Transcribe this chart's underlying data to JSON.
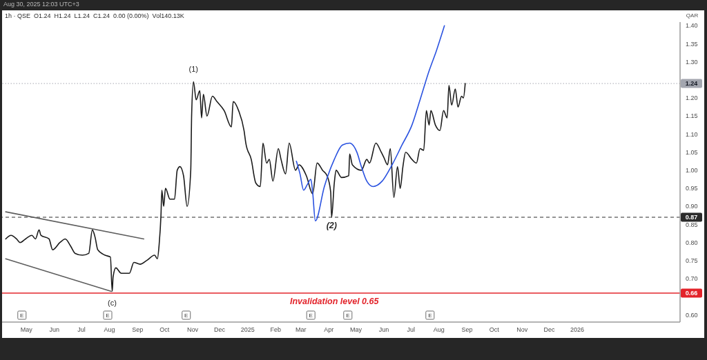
{
  "chart_data": {
    "type": "line",
    "title": "1h · QSE  O1.24  H1.24  L1.24  C1.24  0.00 (0.00%)  Vol140.13K",
    "subtitle": "Aug 30, 2025 12:03 UTC+3",
    "ylabel": "QAR",
    "xlim": [
      "2024-04-04",
      "2026-04-25"
    ],
    "xticks": [
      {
        "value": "2024-05-01",
        "label": "May"
      },
      {
        "value": "2024-06-01",
        "label": "Jun"
      },
      {
        "value": "2024-07-01",
        "label": "Jul"
      },
      {
        "value": "2024-08-01",
        "label": "Aug"
      },
      {
        "value": "2024-09-01",
        "label": "Sep"
      },
      {
        "value": "2024-10-01",
        "label": "Oct"
      },
      {
        "value": "2024-11-01",
        "label": "Nov"
      },
      {
        "value": "2024-12-01",
        "label": "Dec"
      },
      {
        "value": "2025-01-01",
        "label": "2025"
      },
      {
        "value": "2025-02-01",
        "label": "Feb"
      },
      {
        "value": "2025-03-01",
        "label": "Mar"
      },
      {
        "value": "2025-04-01",
        "label": "Apr"
      },
      {
        "value": "2025-05-01",
        "label": "May"
      },
      {
        "value": "2025-06-01",
        "label": "Jun"
      },
      {
        "value": "2025-07-01",
        "label": "Jul"
      },
      {
        "value": "2025-08-01",
        "label": "Aug"
      },
      {
        "value": "2025-09-01",
        "label": "Sep"
      },
      {
        "value": "2025-10-01",
        "label": "Oct"
      },
      {
        "value": "2025-11-01",
        "label": "Nov"
      },
      {
        "value": "2025-12-01",
        "label": "Dec"
      },
      {
        "value": "2026-01-01",
        "label": "2026"
      }
    ],
    "ylim": [
      0.58,
      1.41
    ],
    "yticks": [
      {
        "value": 0.6,
        "label": "0.60"
      },
      {
        "value": 0.7,
        "label": "0.70"
      },
      {
        "value": 0.75,
        "label": "0.75"
      },
      {
        "value": 0.8,
        "label": "0.80"
      },
      {
        "value": 0.85,
        "label": "0.85"
      },
      {
        "value": 0.9,
        "label": "0.90"
      },
      {
        "value": 0.95,
        "label": "0.95"
      },
      {
        "value": 1.0,
        "label": "1.00"
      },
      {
        "value": 1.05,
        "label": "1.05"
      },
      {
        "value": 1.1,
        "label": "1.10"
      },
      {
        "value": 1.15,
        "label": "1.15"
      },
      {
        "value": 1.2,
        "label": "1.20"
      },
      {
        "value": 1.3,
        "label": "1.30"
      },
      {
        "value": 1.35,
        "label": "1.35"
      },
      {
        "value": 1.4,
        "label": "1.40"
      }
    ],
    "series": [
      {
        "color": "#1a1a1a",
        "x": [
          "2024-04-08",
          "2024-04-14",
          "2024-04-20",
          "2024-04-24",
          "2024-04-30",
          "2024-05-07",
          "2024-05-11",
          "2024-05-15",
          "2024-05-17",
          "2024-05-26",
          "2024-05-30",
          "2024-06-07",
          "2024-06-13",
          "2024-06-19",
          "2024-06-24",
          "2024-07-02",
          "2024-07-09",
          "2024-07-13",
          "2024-07-16",
          "2024-07-19",
          "2024-07-27",
          "2024-08-02",
          "2024-08-04",
          "2024-08-05",
          "2024-08-08",
          "2024-08-14",
          "2024-08-23",
          "2024-08-28",
          "2024-09-04",
          "2024-09-11",
          "2024-09-20",
          "2024-09-23",
          "2024-09-25",
          "2024-09-27",
          "2024-09-28",
          "2024-09-30",
          "2024-10-02",
          "2024-10-07",
          "2024-10-12",
          "2024-10-15",
          "2024-10-18",
          "2024-10-22",
          "2024-10-26",
          "2024-10-30",
          "2024-10-31",
          "2024-11-02",
          "2024-11-05",
          "2024-11-09",
          "2024-11-11",
          "2024-11-13",
          "2024-11-17",
          "2024-11-23",
          "2024-11-28",
          "2024-12-06",
          "2024-12-14",
          "2024-12-16",
          "2024-12-22",
          "2024-12-28",
          "2024-12-30",
          "2025-01-05",
          "2025-01-10",
          "2025-01-15",
          "2025-01-18",
          "2025-01-22",
          "2025-01-25",
          "2025-01-29",
          "2025-02-04",
          "2025-02-07",
          "2025-02-12",
          "2025-02-16",
          "2025-02-23",
          "2025-02-27",
          "2025-03-07",
          "2025-03-14",
          "2025-03-19",
          "2025-03-25",
          "2025-03-30",
          "2025-04-03",
          "2025-04-04",
          "2025-04-07",
          "2025-04-09",
          "2025-04-15",
          "2025-04-23",
          "2025-04-24",
          "2025-04-27",
          "2025-05-07",
          "2025-05-13",
          "2025-05-16",
          "2025-05-23",
          "2025-05-29",
          "2025-06-01",
          "2025-06-05",
          "2025-06-08",
          "2025-06-12",
          "2025-06-16",
          "2025-06-19",
          "2025-06-22",
          "2025-06-25",
          "2025-07-02",
          "2025-07-07",
          "2025-07-11",
          "2025-07-15",
          "2025-07-18",
          "2025-07-21",
          "2025-07-23",
          "2025-07-28",
          "2025-08-02",
          "2025-08-06",
          "2025-08-10",
          "2025-08-12",
          "2025-08-15",
          "2025-08-19",
          "2025-08-22",
          "2025-08-26",
          "2025-08-28",
          "2025-08-30"
        ],
        "values": [
          0.81,
          0.82,
          0.81,
          0.8,
          0.81,
          0.82,
          0.81,
          0.835,
          0.82,
          0.81,
          0.78,
          0.8,
          0.81,
          0.79,
          0.77,
          0.765,
          0.77,
          0.835,
          0.815,
          0.78,
          0.765,
          0.76,
          0.665,
          0.705,
          0.73,
          0.715,
          0.715,
          0.745,
          0.74,
          0.75,
          0.765,
          0.755,
          0.795,
          0.875,
          0.945,
          0.9,
          0.95,
          0.92,
          0.92,
          1.0,
          1.01,
          0.985,
          0.9,
          1.0,
          1.155,
          1.245,
          1.195,
          1.22,
          1.145,
          1.21,
          1.15,
          1.205,
          1.19,
          1.165,
          1.12,
          1.19,
          1.165,
          1.11,
          1.075,
          1.03,
          0.965,
          0.955,
          1.075,
          1.02,
          1.03,
          0.97,
          1.06,
          1.03,
          0.99,
          1.075,
          1.0,
          1.015,
          0.985,
          0.935,
          1.02,
          1.0,
          0.985,
          0.94,
          0.87,
          0.965,
          1.0,
          0.98,
          0.985,
          1.045,
          1.015,
          1.0,
          1.03,
          1.02,
          1.075,
          1.05,
          1.035,
          1.015,
          1.06,
          0.925,
          1.01,
          0.95,
          1.01,
          1.05,
          1.03,
          1.02,
          1.06,
          1.055,
          1.165,
          1.125,
          1.165,
          1.125,
          1.11,
          1.165,
          1.145,
          1.235,
          1.18,
          1.225,
          1.175,
          1.205,
          1.2,
          1.24
        ]
      },
      {
        "color": "#2a52e0",
        "x": [
          "2025-02-24",
          "2025-02-28",
          "2025-03-04",
          "2025-03-08",
          "2025-03-12",
          "2025-03-14",
          "2025-03-17",
          "2025-03-27",
          "2025-04-07",
          "2025-04-16",
          "2025-04-24",
          "2025-05-02",
          "2025-05-07",
          "2025-05-13",
          "2025-05-20",
          "2025-05-30",
          "2025-06-10",
          "2025-06-21",
          "2025-07-02",
          "2025-07-11",
          "2025-07-21",
          "2025-07-29",
          "2025-08-07"
        ],
        "values": [
          1.025,
          0.99,
          0.945,
          0.96,
          0.975,
          0.94,
          0.86,
          0.955,
          1.03,
          1.07,
          1.075,
          1.05,
          1.01,
          0.97,
          0.955,
          0.97,
          1.015,
          1.07,
          1.125,
          1.195,
          1.275,
          1.33,
          1.4
        ]
      },
      {
        "color": "#5d5d5d",
        "x": [
          "2024-04-08",
          "2024-09-08"
        ],
        "values": [
          0.885,
          0.81
        ]
      },
      {
        "color": "#5d5d5d",
        "x": [
          "2024-04-08",
          "2024-08-03"
        ],
        "values": [
          0.755,
          0.665
        ]
      }
    ],
    "ref_lines": [
      {
        "axis": "y",
        "value": 1.24,
        "color": "#a3a6af",
        "line_style": "dotted",
        "label": "1.24"
      },
      {
        "axis": "y",
        "value": 0.87,
        "color": "#2b2b2b",
        "line_style": "dashed",
        "label": "0.87"
      },
      {
        "axis": "y",
        "value": 0.66,
        "color": "#e3242b",
        "label": "0.66"
      }
    ],
    "annotations": [
      {
        "text": "(1)",
        "x": "2024-11-02",
        "y": 1.245
      },
      {
        "text": "(2)",
        "x": "2025-04-04",
        "y": 0.87
      },
      {
        "text": "(c)",
        "x": "2024-08-04",
        "y": 0.665
      },
      {
        "text": "Invalidation level 0.65",
        "x": "2025-04-07",
        "y": 0.66
      },
      {
        "text": "E",
        "x": "2024-04-26"
      },
      {
        "text": "E",
        "x": "2024-07-30"
      },
      {
        "text": "E",
        "x": "2024-10-25"
      },
      {
        "text": "E",
        "x": "2025-03-12"
      },
      {
        "text": "E",
        "x": "2025-04-22"
      },
      {
        "text": "E",
        "x": "2025-07-22"
      }
    ]
  }
}
